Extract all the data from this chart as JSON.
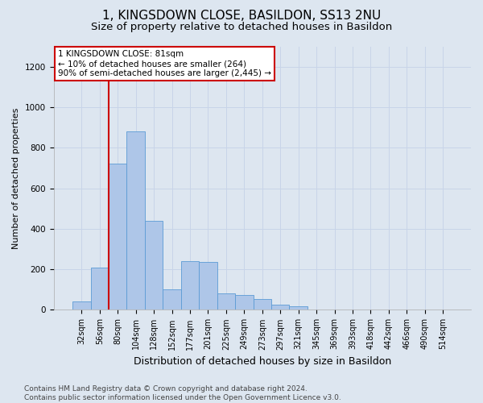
{
  "title1": "1, KINGSDOWN CLOSE, BASILDON, SS13 2NU",
  "title2": "Size of property relative to detached houses in Basildon",
  "xlabel": "Distribution of detached houses by size in Basildon",
  "ylabel": "Number of detached properties",
  "categories": [
    "32sqm",
    "56sqm",
    "80sqm",
    "104sqm",
    "128sqm",
    "152sqm",
    "177sqm",
    "201sqm",
    "225sqm",
    "249sqm",
    "273sqm",
    "297sqm",
    "321sqm",
    "345sqm",
    "369sqm",
    "393sqm",
    "418sqm",
    "442sqm",
    "466sqm",
    "490sqm",
    "514sqm"
  ],
  "values": [
    40,
    210,
    720,
    880,
    440,
    100,
    240,
    235,
    80,
    75,
    55,
    25,
    18,
    0,
    0,
    0,
    0,
    0,
    0,
    0,
    0
  ],
  "bar_color": "#aec6e8",
  "bar_edge_color": "#5b9bd5",
  "annotation_box_text": "1 KINGSDOWN CLOSE: 81sqm\n← 10% of detached houses are smaller (264)\n90% of semi-detached houses are larger (2,445) →",
  "annotation_box_color": "#ffffff",
  "annotation_box_edge_color": "#cc0000",
  "vline_x_index": 2,
  "vline_color": "#cc0000",
  "ylim": [
    0,
    1300
  ],
  "yticks": [
    0,
    200,
    400,
    600,
    800,
    1000,
    1200
  ],
  "grid_color": "#c8d4e8",
  "bg_color": "#dde6f0",
  "footer": "Contains HM Land Registry data © Crown copyright and database right 2024.\nContains public sector information licensed under the Open Government Licence v3.0.",
  "title1_fontsize": 11,
  "title2_fontsize": 9.5,
  "xlabel_fontsize": 9,
  "ylabel_fontsize": 8,
  "footer_fontsize": 6.5,
  "ann_fontsize": 7.5
}
